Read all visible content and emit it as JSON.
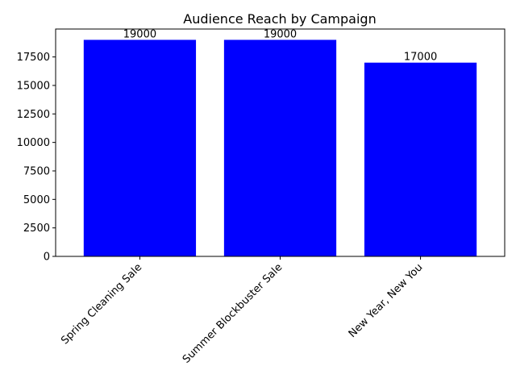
{
  "chart_data": {
    "type": "bar",
    "title": "Audience Reach by Campaign",
    "xlabel": "",
    "ylabel": "",
    "categories": [
      "Spring Cleaning Sale",
      "Summer Blockbuster Sale",
      "New Year, New You"
    ],
    "values": [
      19000,
      19000,
      17000
    ],
    "data_labels": [
      "19000",
      "19000",
      "17000"
    ],
    "y_ticks": [
      0,
      2500,
      5000,
      7500,
      10000,
      12500,
      15000,
      17500
    ],
    "y_tick_labels": [
      "0",
      "2500",
      "5000",
      "7500",
      "10000",
      "12500",
      "15000",
      "17500"
    ],
    "ylim": [
      0,
      19950
    ],
    "bar_color": "#0000ff",
    "grid": false,
    "legend": "none"
  }
}
